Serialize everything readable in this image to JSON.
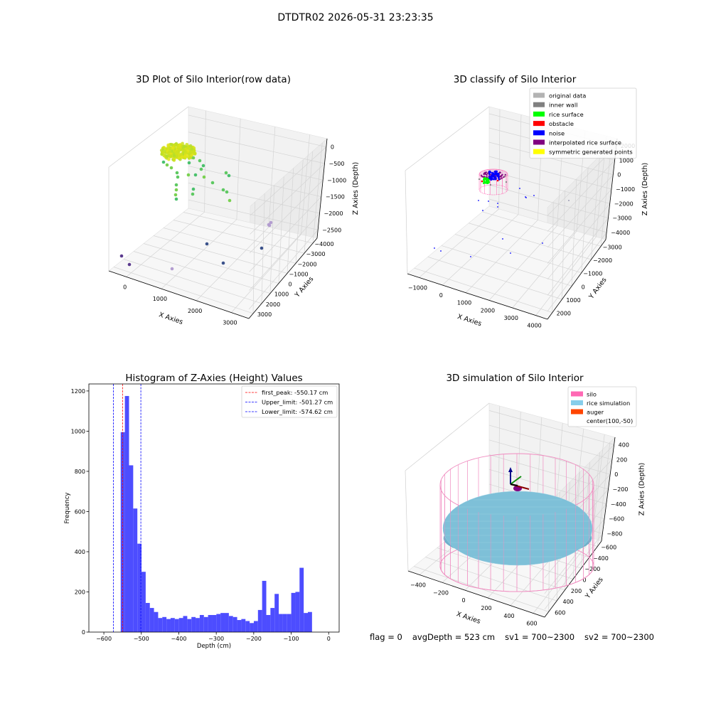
{
  "figure": {
    "suptitle": "DTDTR02 2026-05-31 23:23:35"
  },
  "status": {
    "flag": "flag = 0",
    "avg_depth": "avgDepth = 523 cm",
    "sv1": "sv1 = 700~2300",
    "sv2": "sv2 = 700~2300"
  },
  "chart_data": [
    {
      "type": "scatter",
      "title": "3D Plot of Silo Interior(row data)",
      "xlabel": "X Axies",
      "ylabel": "Y Axies",
      "zlabel": "Z Axies (Depth)",
      "x_ticks": [
        "0",
        "1000",
        "2000",
        "3000"
      ],
      "y_ticks": [
        "−4000",
        "−3000",
        "−2000",
        "−1000",
        "0",
        "1000",
        "2000",
        "3000"
      ],
      "z_ticks": [
        "−2500",
        "−2000",
        "−1500",
        "−1000",
        "−500",
        "0"
      ],
      "colormap": [
        "#440154",
        "#3b528b",
        "#21918c",
        "#5ec962",
        "#fde725"
      ],
      "grid": true
    },
    {
      "type": "scatter",
      "title": "3D classify of Silo Interior",
      "xlabel": "X Axies",
      "ylabel": "Y Axies",
      "zlabel": "Z Axies (Depth)",
      "x_ticks": [
        "−1000",
        "0",
        "1000",
        "2000",
        "3000",
        "4000"
      ],
      "y_ticks": [
        "−3000",
        "−2000",
        "−1000",
        "0",
        "1000",
        "2000"
      ],
      "z_ticks": [
        "−4000",
        "−3000",
        "−2000",
        "−1000",
        "0",
        "1000",
        "2000"
      ],
      "legend_position": "top-right",
      "legend": [
        {
          "label": "original data",
          "color": "#b3b3b3"
        },
        {
          "label": "inner wall",
          "color": "#808080"
        },
        {
          "label": "rice surface",
          "color": "#00ff00"
        },
        {
          "label": "obstacle",
          "color": "#ff0000"
        },
        {
          "label": "noise",
          "color": "#0000ff"
        },
        {
          "label": "interpolated rice surface",
          "color": "#800080"
        },
        {
          "label": "symmetric generated points",
          "color": "#ffff00"
        }
      ],
      "grid": true
    },
    {
      "type": "bar",
      "title": "Histogram of Z-Axies (Height) Values",
      "xlabel": "Depth (cm)",
      "ylabel": "Frequency",
      "xlim": [
        -640,
        28
      ],
      "ylim": [
        0,
        1235
      ],
      "x_ticks": [
        -600,
        -500,
        -400,
        -300,
        -200,
        -100,
        0
      ],
      "y_ticks": [
        0,
        200,
        400,
        600,
        800,
        1000,
        1200
      ],
      "bar_color": "#4d4dff",
      "bin_start": -555,
      "bin_width": 11.1,
      "values": [
        995,
        1175,
        830,
        615,
        440,
        300,
        145,
        120,
        100,
        70,
        75,
        65,
        70,
        65,
        70,
        80,
        65,
        75,
        70,
        85,
        75,
        85,
        85,
        90,
        95,
        95,
        80,
        75,
        60,
        65,
        55,
        45,
        55,
        110,
        255,
        85,
        120,
        190,
        90,
        90,
        90,
        195,
        200,
        320,
        95,
        100
      ],
      "vlines": [
        {
          "label": "first_peak: -550.17 cm",
          "x": -550.17,
          "color": "#ff0000"
        },
        {
          "label": "Upper_limit: -501.27 cm",
          "x": -501.27,
          "color": "#0000ff"
        },
        {
          "label": "Lower_limit: -574.62 cm",
          "x": -574.62,
          "color": "#0000ff"
        }
      ],
      "legend_position": "top-right",
      "grid": false
    },
    {
      "type": "area",
      "title": "3D simulation of Silo Interior",
      "xlabel": "X Axies",
      "ylabel": "Y Axies",
      "zlabel": "Z Axies (Depth)",
      "x_ticks": [
        "−400",
        "−200",
        "0",
        "200",
        "400",
        "600"
      ],
      "y_ticks": [
        "−600",
        "−400",
        "−200",
        "0",
        "200",
        "400",
        "600"
      ],
      "z_ticks": [
        "−800",
        "−600",
        "−400",
        "−200",
        "0",
        "200",
        "400"
      ],
      "legend_position": "top-right",
      "legend": [
        {
          "label": "silo",
          "color": "#ff69b4"
        },
        {
          "label": "rice simulation",
          "color": "#87ceeb"
        },
        {
          "label": "auger",
          "color": "#ff4500"
        },
        {
          "label": "center(100,-50)",
          "color": "#ffffff"
        }
      ],
      "colors": {
        "silo": "#f08cc0",
        "rice": "#7ec0d8",
        "auger": "#800080"
      },
      "grid": true
    }
  ]
}
